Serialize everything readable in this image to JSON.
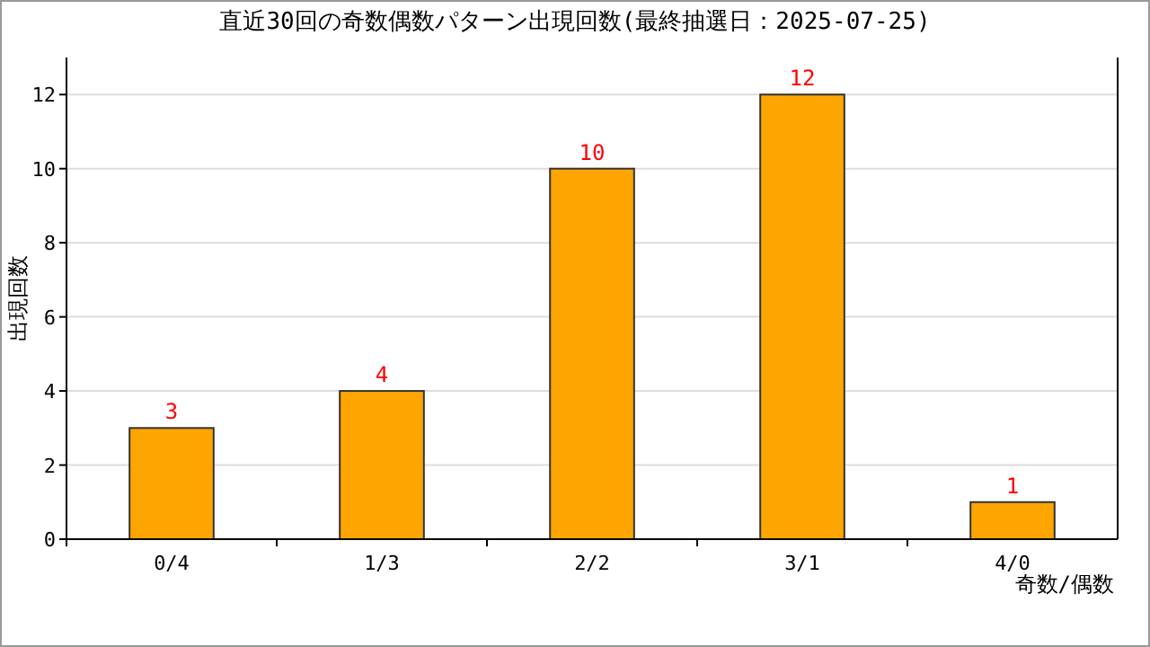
{
  "chart_data": {
    "type": "bar",
    "title": "直近30回の奇数偶数パターン出現回数(最終抽選日：2025-07-25)",
    "xlabel": "奇数/偶数",
    "ylabel": "出現回数",
    "categories": [
      "0/4",
      "1/3",
      "2/2",
      "3/1",
      "4/0"
    ],
    "values": [
      3,
      4,
      10,
      12,
      1
    ],
    "color": "#ffa500",
    "ylim": [
      0,
      13
    ],
    "yticks": [
      0,
      2,
      4,
      6,
      8,
      10,
      12
    ],
    "grid": "y",
    "data_labels": true
  }
}
